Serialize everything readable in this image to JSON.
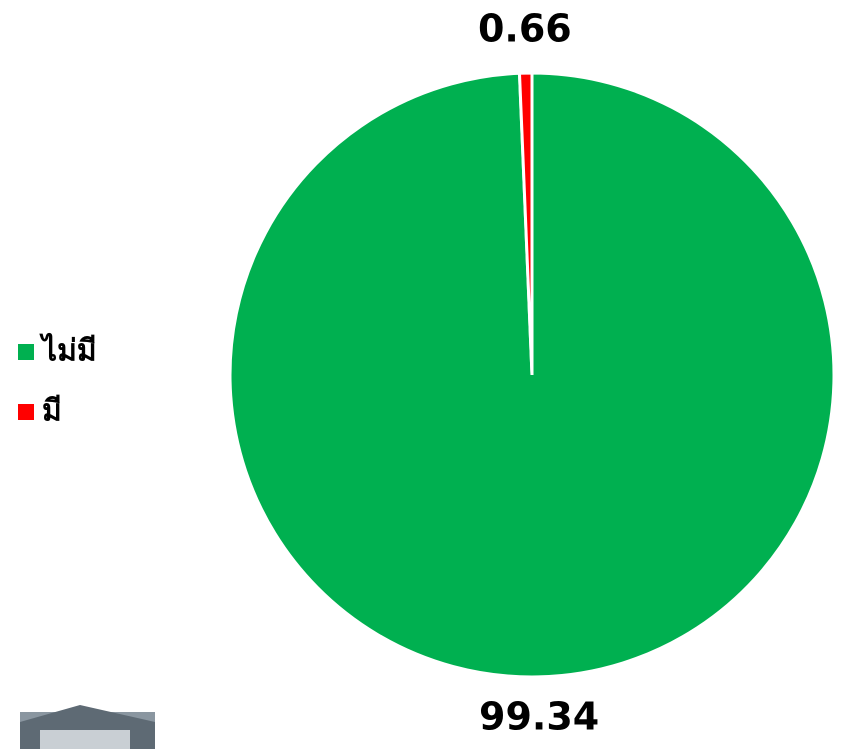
{
  "chart_data": {
    "type": "pie",
    "categories": [
      "ไม่มี",
      "มี"
    ],
    "values": [
      99.34,
      0.66
    ],
    "colors": [
      "#00b050",
      "#ff0000"
    ],
    "legend": "left"
  }
}
